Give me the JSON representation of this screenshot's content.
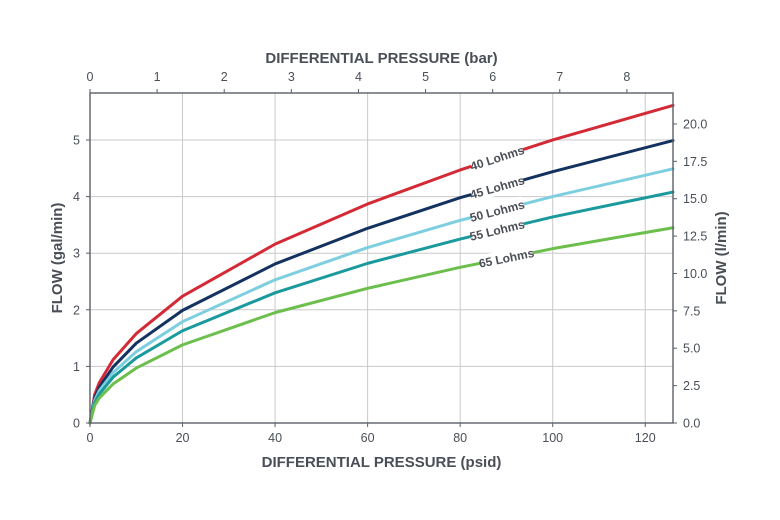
{
  "chart_data": {
    "type": "line",
    "x_bottom": {
      "label": "DIFFERENTIAL PRESSURE (psid)",
      "range": [
        0,
        126
      ],
      "ticks": [
        0,
        20,
        40,
        60,
        80,
        100,
        120
      ]
    },
    "x_top": {
      "label": "DIFFERENTIAL PRESSURE (bar)",
      "range": [
        0,
        8.687
      ],
      "ticks": [
        0,
        1,
        2,
        3,
        4,
        5,
        6,
        7,
        8
      ]
    },
    "y_left": {
      "label": "FLOW (gal/min)",
      "range": [
        0,
        5.83
      ],
      "ticks": [
        0,
        1,
        2,
        3,
        4,
        5
      ]
    },
    "y_right": {
      "label": "FLOW (l/min)",
      "range": [
        0,
        22.07
      ],
      "ticks": [
        "0.0",
        "2.5",
        "5.0",
        "7.5",
        "10.0",
        "12.5",
        "15.0",
        "17.5",
        "20.0"
      ]
    },
    "grid": true,
    "series": [
      {
        "name": "40 Lohms",
        "color": "#d42a36",
        "label_at_x": 88,
        "x": [
          0,
          1,
          2,
          5,
          10,
          20,
          40,
          60,
          80,
          100,
          126
        ],
        "y": [
          0,
          0.5,
          0.71,
          1.12,
          1.58,
          2.24,
          3.16,
          3.87,
          4.47,
          5.0,
          5.61
        ]
      },
      {
        "name": "45 Lohms",
        "color": "#14325f",
        "label_at_x": 88,
        "x": [
          0,
          1,
          2,
          5,
          10,
          20,
          40,
          60,
          80,
          100,
          126
        ],
        "y": [
          0,
          0.44,
          0.63,
          0.99,
          1.41,
          1.99,
          2.81,
          3.44,
          3.98,
          4.44,
          4.99
        ]
      },
      {
        "name": "50 Lohms",
        "color": "#7dcfe0",
        "label_at_x": 88,
        "x": [
          0,
          1,
          2,
          5,
          10,
          20,
          40,
          60,
          80,
          100,
          126
        ],
        "y": [
          0,
          0.4,
          0.57,
          0.89,
          1.26,
          1.79,
          2.53,
          3.1,
          3.58,
          4.0,
          4.49
        ]
      },
      {
        "name": "55 Lohms",
        "color": "#1a9a9c",
        "label_at_x": 88,
        "x": [
          0,
          1,
          2,
          5,
          10,
          20,
          40,
          60,
          80,
          100,
          126
        ],
        "y": [
          0,
          0.36,
          0.51,
          0.81,
          1.15,
          1.63,
          2.3,
          2.82,
          3.25,
          3.64,
          4.08
        ]
      },
      {
        "name": "65 Lohms",
        "color": "#6cbf4c",
        "label_at_x": 90,
        "x": [
          0,
          1,
          2,
          5,
          10,
          20,
          40,
          60,
          80,
          100,
          126
        ],
        "y": [
          0,
          0.31,
          0.44,
          0.69,
          0.97,
          1.38,
          1.95,
          2.38,
          2.75,
          3.08,
          3.45
        ]
      }
    ]
  }
}
